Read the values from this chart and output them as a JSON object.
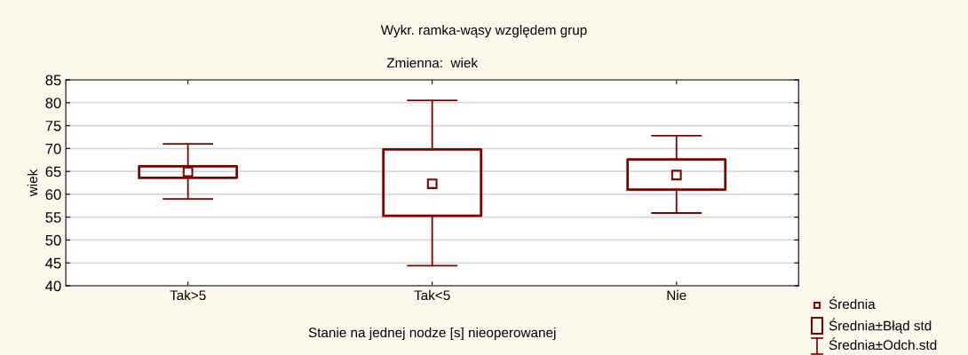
{
  "chart_data": {
    "type": "box",
    "title": "Wykr. ramka-wąsy względem grup",
    "subtitle": "Zmienna:  wiek",
    "xlabel": "Stanie na jednej nodze [s] nieoperowanej",
    "ylabel": "wiek",
    "categories": [
      "Tak>5",
      "Tak<5",
      "Nie"
    ],
    "boxes": [
      {
        "low": 59,
        "q1": 63.6,
        "median": 64.9,
        "q3": 66.1,
        "high": 71
      },
      {
        "low": 44.4,
        "q1": 55.3,
        "median": 62.3,
        "q3": 69.8,
        "high": 80.5
      },
      {
        "low": 55.9,
        "q1": 61.0,
        "median": 64.2,
        "q3": 67.6,
        "high": 72.8
      }
    ],
    "color": "#800000",
    "ylim": [
      40,
      85
    ],
    "yticks": [
      40,
      45,
      50,
      55,
      60,
      65,
      70,
      75,
      80,
      85
    ],
    "grid": "y",
    "marker": "square",
    "annotations": [
      "Średnia",
      "Średnia±Błąd std",
      "Średnia±Odch.std"
    ]
  }
}
